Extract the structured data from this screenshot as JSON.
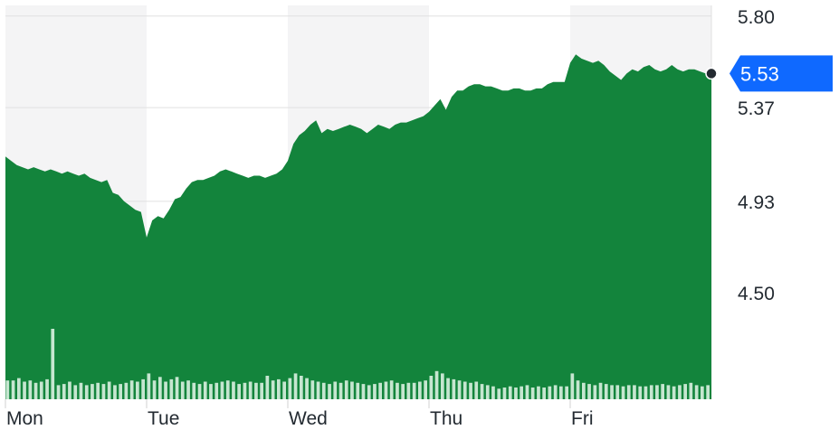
{
  "chart_data": {
    "type": "area",
    "categories": [
      "Mon",
      "Tue",
      "Wed",
      "Thu",
      "Fri"
    ],
    "y_ticks": [
      4.5,
      4.93,
      5.37,
      5.8
    ],
    "ylim": [
      4.0,
      5.85
    ],
    "last_price": 5.53,
    "last_price_label": "5.53",
    "grid": true,
    "colors": {
      "area": "#13843c",
      "volume": "#c6e6d0",
      "shade": "#f4f4f5",
      "badge": "#0f69ff",
      "marker": "#232a31"
    },
    "series": [
      {
        "x": [
          0,
          0.04,
          0.08,
          0.12,
          0.16,
          0.2,
          0.24,
          0.28,
          0.32,
          0.36,
          0.4,
          0.44,
          0.48,
          0.52,
          0.56,
          0.6,
          0.64,
          0.68,
          0.72,
          0.76,
          0.8,
          0.84,
          0.88,
          0.92,
          0.96,
          1.0,
          1.04,
          1.08,
          1.12,
          1.16,
          1.2,
          1.24,
          1.28,
          1.32,
          1.36,
          1.4,
          1.44,
          1.48,
          1.52,
          1.56,
          1.6,
          1.64,
          1.68,
          1.72,
          1.76,
          1.8,
          1.84,
          1.88,
          1.92,
          1.96,
          2.0,
          2.04,
          2.08,
          2.12,
          2.16,
          2.2,
          2.24,
          2.28,
          2.32,
          2.36,
          2.4,
          2.44,
          2.48,
          2.52,
          2.56,
          2.6,
          2.64,
          2.68,
          2.72,
          2.76,
          2.8,
          2.84,
          2.88,
          2.92,
          2.96,
          3.0,
          3.04,
          3.08,
          3.12,
          3.16,
          3.2,
          3.24,
          3.28,
          3.32,
          3.36,
          3.4,
          3.44,
          3.48,
          3.52,
          3.56,
          3.6,
          3.64,
          3.68,
          3.72,
          3.76,
          3.8,
          3.84,
          3.88,
          3.92,
          3.96,
          4.0,
          4.04,
          4.08,
          4.12,
          4.16,
          4.2,
          4.24,
          4.28,
          4.32,
          4.36,
          4.4,
          4.44,
          4.48,
          4.52,
          4.56,
          4.6,
          4.64,
          4.68,
          4.72,
          4.76,
          4.8,
          4.84,
          4.88,
          4.92,
          4.96
        ],
        "y": [
          5.14,
          5.12,
          5.1,
          5.09,
          5.08,
          5.09,
          5.08,
          5.07,
          5.08,
          5.07,
          5.06,
          5.07,
          5.06,
          5.05,
          5.06,
          5.04,
          5.03,
          5.02,
          5.03,
          4.97,
          4.96,
          4.93,
          4.91,
          4.89,
          4.88,
          4.76,
          4.84,
          4.86,
          4.85,
          4.89,
          4.94,
          4.95,
          4.99,
          5.02,
          5.03,
          5.03,
          5.04,
          5.05,
          5.07,
          5.08,
          5.07,
          5.06,
          5.05,
          5.04,
          5.05,
          5.05,
          5.04,
          5.05,
          5.06,
          5.08,
          5.12,
          5.2,
          5.24,
          5.26,
          5.29,
          5.31,
          5.25,
          5.27,
          5.26,
          5.27,
          5.28,
          5.29,
          5.28,
          5.27,
          5.25,
          5.27,
          5.29,
          5.28,
          5.27,
          5.29,
          5.3,
          5.3,
          5.31,
          5.32,
          5.33,
          5.35,
          5.38,
          5.41,
          5.36,
          5.42,
          5.45,
          5.45,
          5.47,
          5.48,
          5.48,
          5.47,
          5.47,
          5.46,
          5.45,
          5.45,
          5.46,
          5.46,
          5.45,
          5.45,
          5.46,
          5.46,
          5.48,
          5.49,
          5.49,
          5.49,
          5.58,
          5.62,
          5.6,
          5.59,
          5.58,
          5.59,
          5.57,
          5.54,
          5.52,
          5.5,
          5.53,
          5.55,
          5.54,
          5.56,
          5.57,
          5.55,
          5.54,
          5.55,
          5.57,
          5.55,
          5.54,
          5.55,
          5.55,
          5.54,
          5.53
        ],
        "volume": [
          16,
          16,
          18,
          15,
          16,
          14,
          15,
          17,
          60,
          12,
          13,
          15,
          12,
          14,
          12,
          13,
          14,
          13,
          15,
          12,
          13,
          14,
          16,
          15,
          17,
          22,
          16,
          19,
          15,
          17,
          19,
          15,
          16,
          14,
          13,
          15,
          13,
          14,
          15,
          16,
          15,
          13,
          14,
          15,
          14,
          14,
          20,
          16,
          17,
          15,
          18,
          22,
          20,
          18,
          16,
          15,
          14,
          13,
          15,
          14,
          16,
          15,
          14,
          13,
          12,
          13,
          14,
          15,
          16,
          14,
          13,
          14,
          14,
          15,
          16,
          20,
          24,
          22,
          18,
          17,
          16,
          15,
          14,
          15,
          13,
          12,
          11,
          9,
          10,
          11,
          10,
          11,
          12,
          10,
          11,
          10,
          11,
          12,
          11,
          11,
          22,
          16,
          14,
          13,
          12,
          14,
          13,
          12,
          12,
          11,
          12,
          12,
          11,
          11,
          12,
          12,
          13,
          12,
          11,
          12,
          13,
          14,
          12,
          11,
          12
        ]
      }
    ]
  }
}
